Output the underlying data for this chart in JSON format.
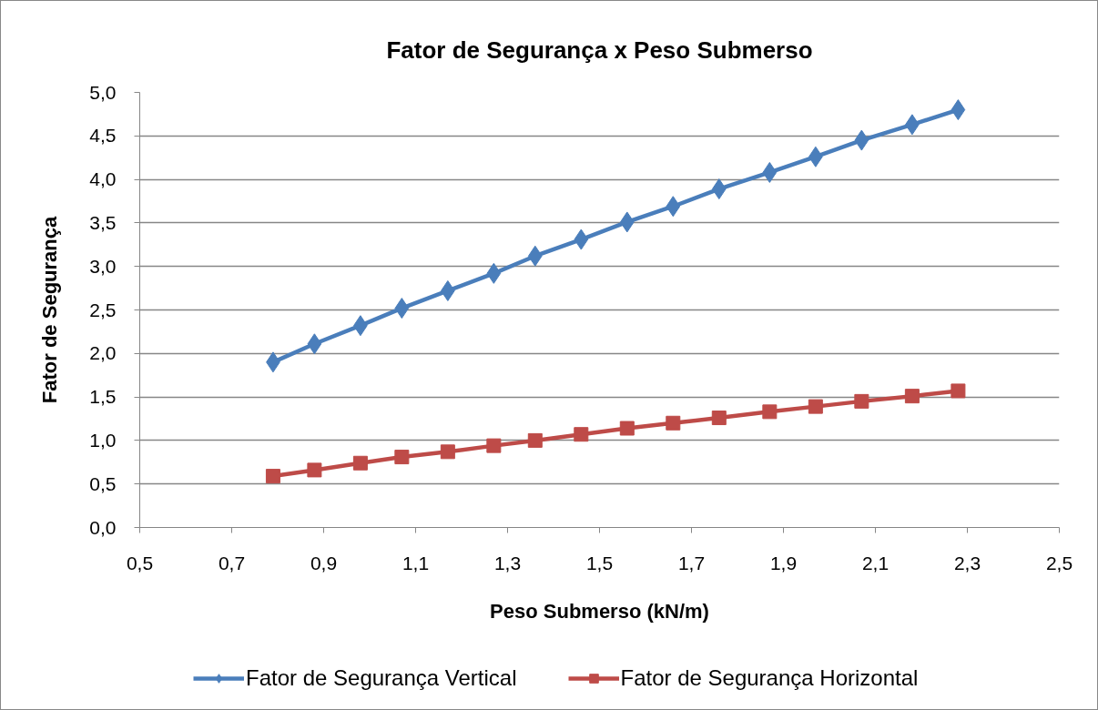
{
  "chart_data": {
    "type": "line",
    "title": "Fator de Segurança x Peso Submerso",
    "xlabel": "Peso Submerso (kN/m)",
    "ylabel": "Fator de Segurança",
    "x": [
      0.79,
      0.88,
      0.98,
      1.07,
      1.17,
      1.27,
      1.36,
      1.46,
      1.56,
      1.66,
      1.76,
      1.87,
      1.97,
      2.07,
      2.18,
      2.28
    ],
    "series": [
      {
        "name": "Fator de Segurança Vertical",
        "color": "#4a7ebb",
        "marker": "diamond",
        "values": [
          1.9,
          2.11,
          2.32,
          2.52,
          2.72,
          2.92,
          3.12,
          3.31,
          3.51,
          3.69,
          3.89,
          4.08,
          4.26,
          4.45,
          4.63,
          4.8
        ]
      },
      {
        "name": "Fator de Segurança Horizontal",
        "color": "#be4b48",
        "marker": "square",
        "values": [
          0.59,
          0.66,
          0.74,
          0.81,
          0.87,
          0.94,
          1.0,
          1.07,
          1.14,
          1.2,
          1.26,
          1.33,
          1.39,
          1.45,
          1.51,
          1.57
        ]
      }
    ],
    "xlim": [
      0.5,
      2.5
    ],
    "ylim": [
      0,
      5
    ],
    "xticks": [
      {
        "value": 0.5,
        "label": "0,5"
      },
      {
        "value": 0.7,
        "label": "0,7"
      },
      {
        "value": 0.9,
        "label": "0,9"
      },
      {
        "value": 1.1,
        "label": "1,1"
      },
      {
        "value": 1.3,
        "label": "1,3"
      },
      {
        "value": 1.5,
        "label": "1,5"
      },
      {
        "value": 1.7,
        "label": "1,7"
      },
      {
        "value": 1.9,
        "label": "1,9"
      },
      {
        "value": 2.1,
        "label": "2,1"
      },
      {
        "value": 2.3,
        "label": "2,3"
      },
      {
        "value": 2.5,
        "label": "2,5"
      }
    ],
    "yticks": [
      {
        "value": 0,
        "label": "0,0"
      },
      {
        "value": 0.5,
        "label": "0,5"
      },
      {
        "value": 1,
        "label": "1,0"
      },
      {
        "value": 1.5,
        "label": "1,5"
      },
      {
        "value": 2,
        "label": "2,0"
      },
      {
        "value": 2.5,
        "label": "2,5"
      },
      {
        "value": 3,
        "label": "3,0"
      },
      {
        "value": 3.5,
        "label": "3,5"
      },
      {
        "value": 4,
        "label": "4,0"
      },
      {
        "value": 4.5,
        "label": "4,5"
      },
      {
        "value": 5,
        "label": "5,0"
      }
    ],
    "grid": "y",
    "legend": "bottom",
    "line_style": "solid"
  }
}
